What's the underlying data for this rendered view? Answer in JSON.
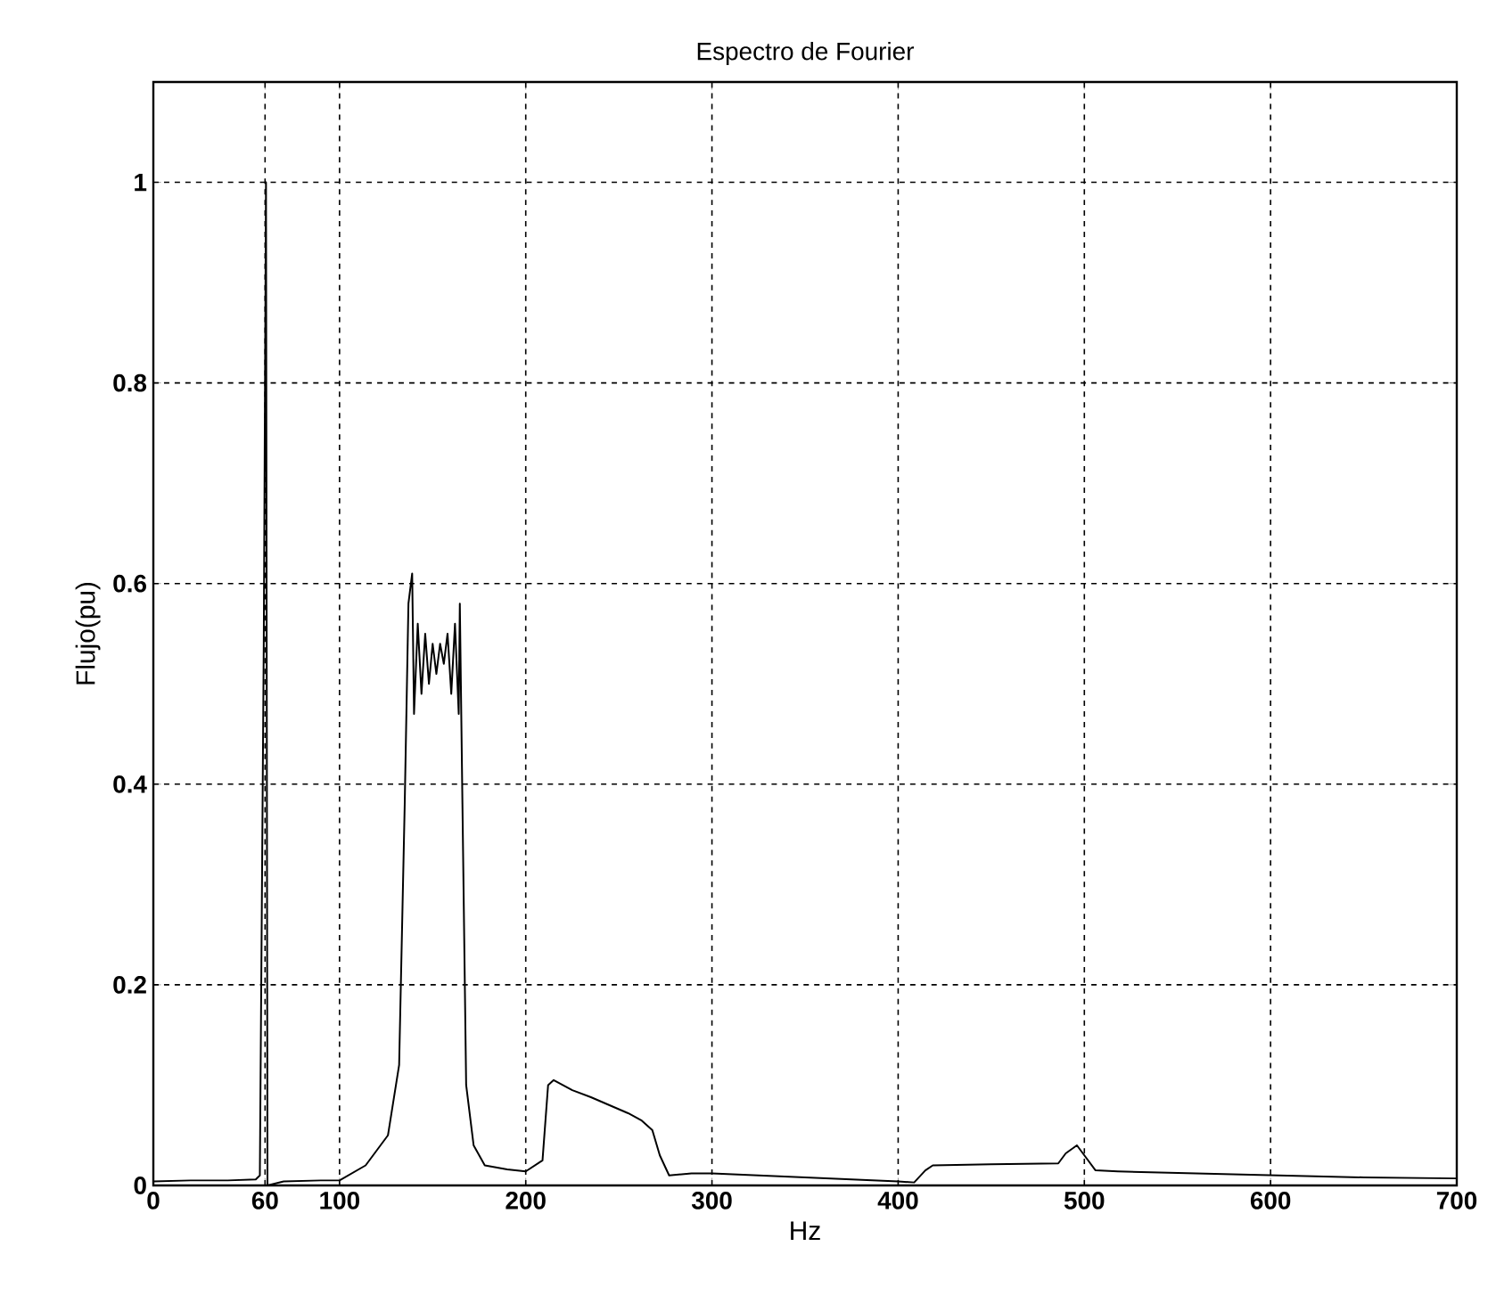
{
  "chart_data": {
    "type": "line",
    "title": "Espectro de Fourier",
    "xlabel": "Hz",
    "ylabel": "Flujo(pu)",
    "x": [
      0,
      20,
      40,
      55,
      57.2,
      59.3,
      60.5,
      61.3,
      70,
      90,
      100,
      114,
      126,
      132,
      135,
      137,
      139,
      140,
      142,
      144,
      146,
      148,
      150,
      152,
      154,
      156,
      158,
      160,
      162,
      164,
      164.6,
      166,
      168,
      172,
      178,
      190,
      200,
      209,
      212,
      215,
      225,
      235,
      245,
      255,
      262,
      268,
      272,
      277,
      289,
      300,
      350,
      400,
      408.6,
      414.6,
      418.6,
      450,
      486,
      490,
      496,
      500,
      506,
      518,
      560,
      604,
      650,
      700
    ],
    "series": [
      {
        "color": "#000000",
        "values": [
          0.004,
          0.005,
          0.005,
          0.006,
          0.01,
          0.54,
          1.0,
          0.0,
          0.004,
          0.005,
          0.005,
          0.02,
          0.05,
          0.12,
          0.38,
          0.58,
          0.61,
          0.47,
          0.56,
          0.49,
          0.55,
          0.5,
          0.54,
          0.51,
          0.54,
          0.52,
          0.55,
          0.49,
          0.56,
          0.47,
          0.58,
          0.38,
          0.1,
          0.04,
          0.02,
          0.016,
          0.014,
          0.025,
          0.1,
          0.105,
          0.095,
          0.088,
          0.08,
          0.072,
          0.065,
          0.055,
          0.03,
          0.01,
          0.012,
          0.012,
          0.008,
          0.004,
          0.003,
          0.015,
          0.02,
          0.021,
          0.022,
          0.032,
          0.04,
          0.03,
          0.015,
          0.014,
          0.012,
          0.01,
          0.008,
          0.007
        ]
      }
    ],
    "xlim": [
      0,
      700
    ],
    "ylim": [
      0,
      1.1
    ],
    "xticks": [
      0,
      60,
      100,
      200,
      300,
      400,
      500,
      600,
      700
    ],
    "yticks": [
      0,
      0.2,
      0.4,
      0.6,
      0.8,
      1
    ],
    "grid": true,
    "line_style": "solid",
    "marker": "none"
  }
}
